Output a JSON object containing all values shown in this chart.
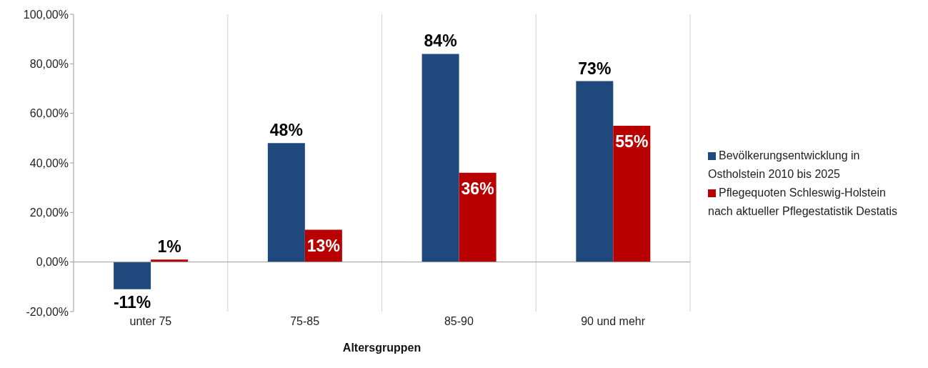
{
  "chart_data": {
    "type": "bar",
    "xlabel": "Altersgruppen",
    "categories": [
      "unter 75",
      "75-85",
      "85-90",
      "90 und mehr"
    ],
    "series": [
      {
        "name": "Bevölkerungsentwicklung in Ostholstein 2010 bis 2025",
        "color": "#1f497d",
        "values": [
          -11,
          48,
          84,
          73
        ],
        "value_labels": [
          "-11%",
          "48%",
          "84%",
          "73%"
        ]
      },
      {
        "name": "Pflegequoten Schleswig-Holstein nach aktueller Pflegestatistik Destatis",
        "color": "#b80000",
        "values": [
          1,
          13,
          36,
          55
        ],
        "value_labels": [
          "1%",
          "13%",
          "36%",
          "55%"
        ]
      }
    ],
    "ylim": [
      -20,
      100
    ],
    "yticks": [
      {
        "value": -20,
        "label": "-20,00%"
      },
      {
        "value": 0,
        "label": "0,00%"
      },
      {
        "value": 20,
        "label": "20,00%"
      },
      {
        "value": 40,
        "label": "40,00%"
      },
      {
        "value": 60,
        "label": "60,00%"
      },
      {
        "value": 80,
        "label": "80,00%"
      },
      {
        "value": 100,
        "label": "100,00%"
      }
    ],
    "grid": "x",
    "legend": "right"
  }
}
